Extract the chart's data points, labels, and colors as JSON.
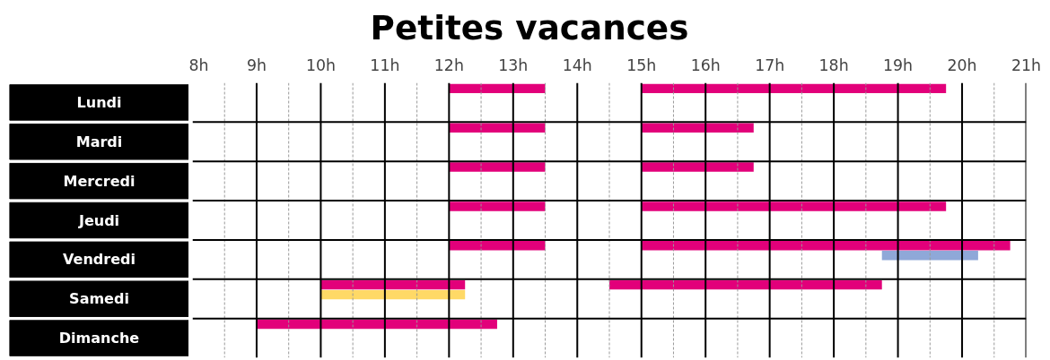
{
  "chart_data": {
    "type": "bar",
    "orientation": "horizontal",
    "title": "Petites vacances",
    "categories": [
      "Lundi",
      "Mardi",
      "Mercredi",
      "Jeudi",
      "Vendredi",
      "Samedi",
      "Dimanche"
    ],
    "series": [
      {
        "color": "#e2007a",
        "base": [
          12,
          12,
          12,
          12,
          12,
          10,
          9
        ],
        "values": [
          1.5,
          1.5,
          1.5,
          1.5,
          1.5,
          2.25,
          3.75
        ]
      },
      {
        "color": "#e2007a",
        "base": [
          15,
          15,
          15,
          15,
          15,
          14.5,
          null
        ],
        "values": [
          4.75,
          1.75,
          1.75,
          4.75,
          5.75,
          4.25,
          null
        ]
      },
      {
        "color": "#8fa8d8",
        "base": [
          null,
          null,
          null,
          null,
          18.75,
          null,
          null
        ],
        "values": [
          null,
          null,
          null,
          null,
          1.5,
          null,
          null
        ]
      },
      {
        "color": "#ffd966",
        "base": [
          null,
          null,
          null,
          null,
          null,
          10,
          null
        ],
        "values": [
          null,
          null,
          null,
          null,
          null,
          2.25,
          null
        ]
      }
    ],
    "xlim": [
      8,
      21
    ],
    "xticks": [
      {
        "value": 8,
        "label": "8h"
      },
      {
        "value": 8.5,
        "label": null
      },
      {
        "value": 9,
        "label": "9h"
      },
      {
        "value": 9.5,
        "label": null
      },
      {
        "value": 10,
        "label": "10h"
      },
      {
        "value": 10.5,
        "label": null
      },
      {
        "value": 11,
        "label": "11h"
      },
      {
        "value": 11.5,
        "label": null
      },
      {
        "value": 12,
        "label": "12h"
      },
      {
        "value": 12.5,
        "label": null
      },
      {
        "value": 13,
        "label": "13h"
      },
      {
        "value": 13.5,
        "label": null
      },
      {
        "value": 14,
        "label": "14h"
      },
      {
        "value": 14.5,
        "label": null
      },
      {
        "value": 15,
        "label": "15h"
      },
      {
        "value": 15.5,
        "label": null
      },
      {
        "value": 16,
        "label": "16h"
      },
      {
        "value": 16.5,
        "label": null
      },
      {
        "value": 17,
        "label": "17h"
      },
      {
        "value": 17.5,
        "label": null
      },
      {
        "value": 18,
        "label": "18h"
      },
      {
        "value": 18.5,
        "label": null
      },
      {
        "value": 19,
        "label": "19h"
      },
      {
        "value": 19.5,
        "label": null
      },
      {
        "value": 20,
        "label": "20h"
      },
      {
        "value": 20.5,
        "label": null
      },
      {
        "value": 21,
        "label": "21h"
      }
    ],
    "grid": true
  }
}
